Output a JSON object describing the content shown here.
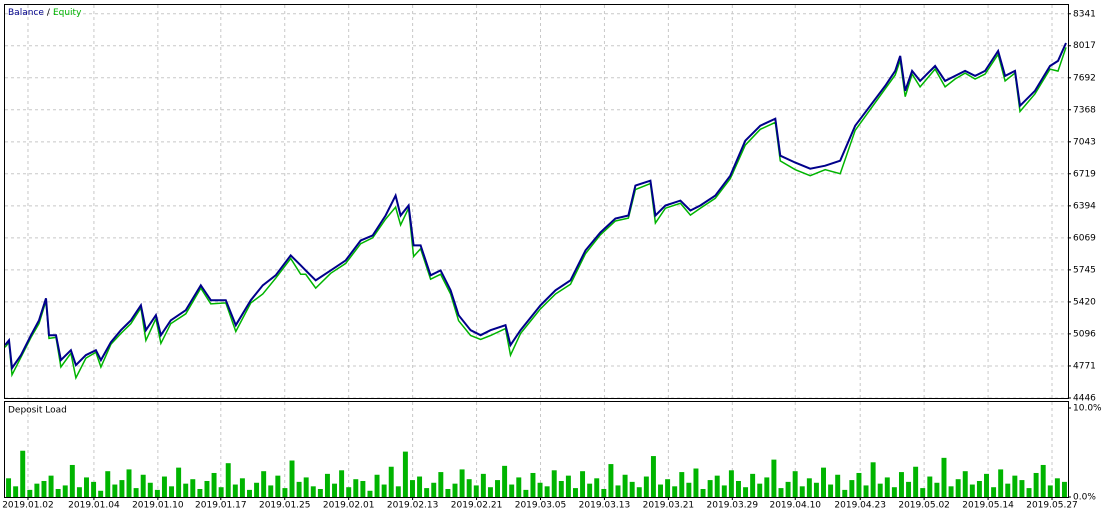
{
  "chart_data": [
    {
      "type": "line",
      "xlim": [
        0,
        1064
      ],
      "ylim": [
        4446,
        8430
      ],
      "legend_separator": "/",
      "grid": true,
      "yticks": [
        4446,
        4771,
        5096,
        5420,
        5745,
        6069,
        6394,
        6719,
        7043,
        7368,
        7692,
        8017,
        8341
      ],
      "xticks": [
        {
          "value": 23,
          "label": "2019.01.02"
        },
        {
          "value": 89,
          "label": "2019.01.04"
        },
        {
          "value": 153,
          "label": "2019.01.10"
        },
        {
          "value": 216,
          "label": "2019.01.17"
        },
        {
          "value": 280,
          "label": "2019.01.25"
        },
        {
          "value": 344,
          "label": "2019.02.01"
        },
        {
          "value": 408,
          "label": "2019.02.13"
        },
        {
          "value": 472,
          "label": "2019.02.21"
        },
        {
          "value": 536,
          "label": "2019.03.05"
        },
        {
          "value": 600,
          "label": "2019.03.13"
        },
        {
          "value": 664,
          "label": "2019.03.21"
        },
        {
          "value": 728,
          "label": "2019.03.29"
        },
        {
          "value": 791,
          "label": "2019.04.10"
        },
        {
          "value": 856,
          "label": "2019.04.23"
        },
        {
          "value": 920,
          "label": "2019.05.02"
        },
        {
          "value": 984,
          "label": "2019.05.14"
        },
        {
          "value": 1048,
          "label": "2019.05.27"
        }
      ],
      "x": [
        0,
        4,
        7,
        16,
        26,
        34,
        41,
        44,
        51,
        56,
        66,
        71,
        81,
        91,
        96,
        106,
        116,
        126,
        136,
        141,
        151,
        156,
        166,
        181,
        196,
        206,
        221,
        231,
        246,
        258,
        271,
        286,
        296,
        301,
        311,
        326,
        341,
        356,
        368,
        381,
        391,
        396,
        404,
        409,
        416,
        426,
        436,
        446,
        454,
        466,
        476,
        486,
        501,
        506,
        516,
        536,
        551,
        566,
        581,
        596,
        611,
        624,
        631,
        646,
        651,
        661,
        676,
        686,
        696,
        711,
        726,
        741,
        756,
        771,
        776,
        791,
        806,
        821,
        836,
        851,
        866,
        881,
        891,
        896,
        901,
        908,
        916,
        931,
        941,
        951,
        961,
        971,
        981,
        994,
        1001,
        1011,
        1016,
        1031,
        1046,
        1054,
        1062
      ],
      "series": [
        {
          "name": "Balance",
          "color": "#00008b",
          "values": [
            4982,
            5032,
            4749,
            4881,
            5083,
            5234,
            5457,
            5083,
            5083,
            4830,
            4931,
            4780,
            4881,
            4931,
            4830,
            5012,
            5133,
            5234,
            5386,
            5133,
            5285,
            5083,
            5234,
            5336,
            5588,
            5437,
            5437,
            5184,
            5437,
            5588,
            5690,
            5892,
            5791,
            5740,
            5639,
            5740,
            5841,
            6043,
            6094,
            6296,
            6498,
            6296,
            6397,
            5993,
            5993,
            5690,
            5740,
            5538,
            5285,
            5133,
            5083,
            5133,
            5184,
            4982,
            5133,
            5386,
            5538,
            5639,
            5942,
            6124,
            6266,
            6296,
            6599,
            6649,
            6296,
            6397,
            6447,
            6347,
            6397,
            6498,
            6700,
            7054,
            7206,
            7277,
            6902,
            6832,
            6771,
            6801,
            6852,
            7206,
            7408,
            7610,
            7762,
            7914,
            7560,
            7762,
            7661,
            7812,
            7661,
            7711,
            7762,
            7711,
            7762,
            7964,
            7711,
            7762,
            7408,
            7560,
            7812,
            7863,
            8045
          ]
        },
        {
          "name": "Equity",
          "color": "#00b400",
          "values": [
            4960,
            5010,
            4680,
            4860,
            5060,
            5200,
            5430,
            5050,
            5060,
            4760,
            4900,
            4650,
            4850,
            4910,
            4760,
            4990,
            5100,
            5200,
            5360,
            5030,
            5250,
            5000,
            5200,
            5300,
            5560,
            5400,
            5410,
            5120,
            5410,
            5500,
            5660,
            5860,
            5700,
            5700,
            5560,
            5710,
            5810,
            6010,
            6070,
            6260,
            6380,
            6200,
            6370,
            5880,
            5960,
            5650,
            5700,
            5500,
            5230,
            5080,
            5040,
            5080,
            5150,
            4880,
            5100,
            5350,
            5500,
            5600,
            5910,
            6100,
            6240,
            6270,
            6560,
            6620,
            6220,
            6370,
            6420,
            6300,
            6370,
            6470,
            6670,
            7010,
            7170,
            7240,
            6850,
            6760,
            6700,
            6760,
            6720,
            7160,
            7370,
            7580,
            7720,
            7870,
            7500,
            7730,
            7600,
            7780,
            7600,
            7680,
            7740,
            7680,
            7730,
            7930,
            7660,
            7740,
            7350,
            7530,
            7780,
            7760,
            8000
          ]
        }
      ]
    },
    {
      "type": "bar",
      "title": "Deposit Load",
      "color": "#00b400",
      "ylim": [
        0,
        10
      ],
      "yticks": [
        {
          "value": 0,
          "label": "0.0%"
        },
        {
          "value": 10,
          "label": "10.0%"
        }
      ],
      "values": [
        2.1,
        1.2,
        5.2,
        0.8,
        1.5,
        1.8,
        2.4,
        0.9,
        1.3,
        3.6,
        1.1,
        2.2,
        1.7,
        0.7,
        2.9,
        1.4,
        1.9,
        3.1,
        1.0,
        2.5,
        1.6,
        0.8,
        2.3,
        1.2,
        3.3,
        1.5,
        2.0,
        0.9,
        1.8,
        2.7,
        1.1,
        3.8,
        1.4,
        2.1,
        0.8,
        1.6,
        2.9,
        1.3,
        2.4,
        1.0,
        4.1,
        1.7,
        2.2,
        1.2,
        0.9,
        2.6,
        1.5,
        3.0,
        1.1,
        2.0,
        1.8,
        0.7,
        2.5,
        1.4,
        3.4,
        1.2,
        5.1,
        1.9,
        2.3,
        1.0,
        1.6,
        2.8,
        0.9,
        1.5,
        3.1,
        2.0,
        1.3,
        2.6,
        1.1,
        1.9,
        3.5,
        1.4,
        2.2,
        0.8,
        2.7,
        1.6,
        1.2,
        3.0,
        1.8,
        2.4,
        1.0,
        2.9,
        1.5,
        2.1,
        0.9,
        3.7,
        1.3,
        2.5,
        1.7,
        1.1,
        2.3,
        4.6,
        1.4,
        2.0,
        1.2,
        2.8,
        1.6,
        3.2,
        0.9,
        1.9,
        2.4,
        1.3,
        3.0,
        1.8,
        1.1,
        2.6,
        1.5,
        2.2,
        4.2,
        1.0,
        1.7,
        2.9,
        1.2,
        2.1,
        1.6,
        3.3,
        1.4,
        2.5,
        0.8,
        1.9,
        2.7,
        1.3,
        3.9,
        1.5,
        2.2,
        1.1,
        2.8,
        1.7,
        3.4,
        1.0,
        2.3,
        1.6,
        4.4,
        1.2,
        2.0,
        2.9,
        1.4,
        1.8,
        2.6,
        1.1,
        3.1,
        1.5,
        2.4,
        1.9,
        1.0,
        2.7,
        3.6,
        1.3,
        2.1,
        1.7
      ]
    }
  ]
}
